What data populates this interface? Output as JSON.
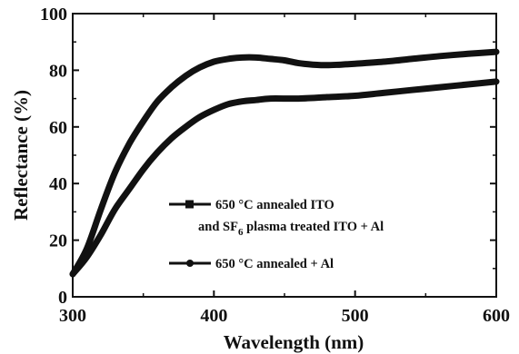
{
  "chart_data": {
    "type": "line",
    "xlabel": "Wavelength (nm)",
    "ylabel": "Reflectance (%)",
    "xlim": [
      300,
      600
    ],
    "ylim": [
      0,
      100
    ],
    "xticks": [
      300,
      400,
      500,
      600
    ],
    "yticks": [
      0,
      20,
      40,
      60,
      80,
      100
    ],
    "xtick_labels": [
      "300",
      "400",
      "500",
      "600"
    ],
    "ytick_labels": [
      "0",
      "20",
      "40",
      "60",
      "80",
      "100"
    ],
    "grid": false,
    "legend_position": "lower-right",
    "series": [
      {
        "name_line1": "650 °C annealed ITO",
        "name_line2_prefix": "and SF",
        "name_line2_subscript": "6",
        "name_line2_suffix": " plasma treated ITO + Al",
        "marker": "square",
        "color": "#111111",
        "x": [
          300,
          310,
          320,
          330,
          340,
          350,
          360,
          370,
          380,
          390,
          400,
          410,
          420,
          430,
          440,
          450,
          460,
          470,
          480,
          490,
          500,
          520,
          540,
          560,
          580,
          600
        ],
        "y": [
          8,
          17,
          31,
          44,
          54,
          62,
          69,
          74,
          78,
          81,
          83,
          84,
          84.5,
          84.5,
          84,
          83.5,
          82.5,
          82,
          81.8,
          82,
          82.3,
          83,
          84,
          85,
          85.8,
          86.5
        ]
      },
      {
        "name": "650 °C annealed + Al",
        "marker": "circle",
        "color": "#111111",
        "x": [
          300,
          310,
          320,
          330,
          340,
          350,
          360,
          370,
          380,
          390,
          400,
          410,
          420,
          430,
          440,
          460,
          480,
          500,
          520,
          540,
          560,
          580,
          600
        ],
        "y": [
          8,
          14,
          22,
          31,
          38,
          45,
          51,
          56,
          60,
          63.5,
          66,
          68,
          69,
          69.5,
          70,
          70,
          70.5,
          71,
          72,
          73,
          74,
          75,
          76
        ]
      }
    ]
  }
}
